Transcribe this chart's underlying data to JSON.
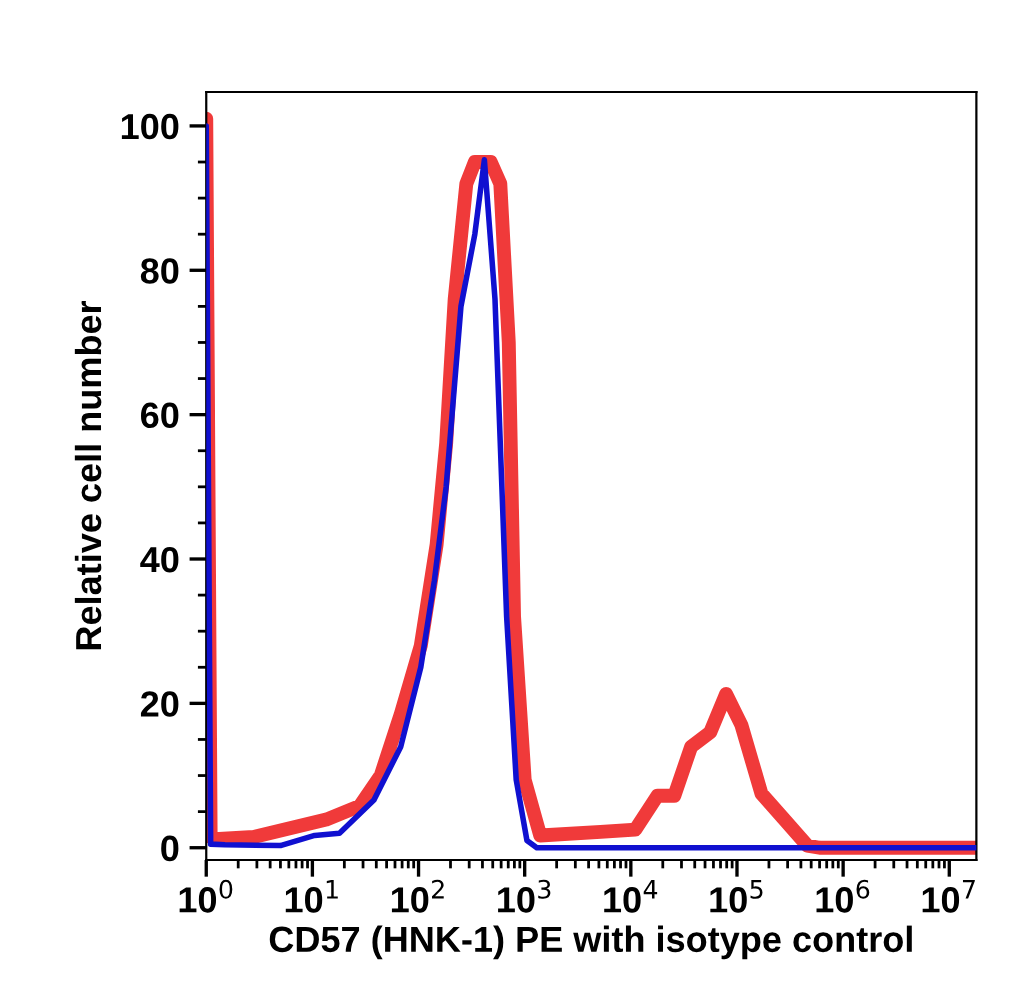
{
  "chart_data": {
    "type": "line",
    "xlabel": "CD57 (HNK-1) PE with isotype control",
    "ylabel": "Relative cell number",
    "log": "x",
    "grid": false,
    "legend": false,
    "marker": "none",
    "line_style": "solid",
    "xlim": [
      1,
      18000000
    ],
    "ylim": [
      -1.7,
      104.7
    ],
    "xticks": [
      {
        "value": 1,
        "label": "10$^{0}$"
      },
      {
        "value": 10,
        "label": "10$^{1}$"
      },
      {
        "value": 100,
        "label": "10$^{2}$"
      },
      {
        "value": 1000,
        "label": "10$^{3}$"
      },
      {
        "value": 10000,
        "label": "10$^{4}$"
      },
      {
        "value": 100000,
        "label": "10$^{5}$"
      },
      {
        "value": 1000000,
        "label": "10$^{6}$"
      },
      {
        "value": 10000000,
        "label": "10$^{7}$"
      }
    ],
    "yticks": [
      0,
      20,
      40,
      60,
      80,
      100
    ],
    "series": [
      {
        "color": "#f03a3a",
        "x": [
          1,
          1.1,
          1.2,
          2.8,
          13.5,
          28,
          44,
          68,
          105,
          148,
          182,
          219,
          282,
          339,
          479,
          589,
          708,
          794,
          1000,
          1400,
          5200,
          11000,
          17800,
          25700,
          37000,
          56000,
          79000,
          110000,
          170000,
          280000,
          460000,
          600000,
          1000000,
          18000000
        ],
        "values": [
          101,
          1.5,
          1.2,
          1.5,
          3.9,
          5.8,
          10,
          18.5,
          28,
          42,
          56,
          76,
          92,
          95,
          95,
          92,
          70,
          32,
          9.4,
          1.7,
          2.2,
          2.5,
          7.2,
          7.2,
          14,
          16,
          21.3,
          17,
          7.5,
          3.9,
          0.3,
          0,
          0,
          0
        ]
      },
      {
        "color": "#1010d0",
        "x": [
          1,
          1.1,
          1.5,
          5,
          10.5,
          18,
          38,
          68,
          105,
          141,
          182,
          251,
          339,
          417,
          525,
          676,
          832,
          1050,
          1300,
          18000000
        ],
        "values": [
          100,
          0.5,
          0.4,
          0.3,
          1.7,
          2,
          6.6,
          14,
          25,
          37,
          50,
          75,
          85,
          95.3,
          76,
          32,
          9.4,
          1,
          0,
          0
        ]
      }
    ]
  }
}
